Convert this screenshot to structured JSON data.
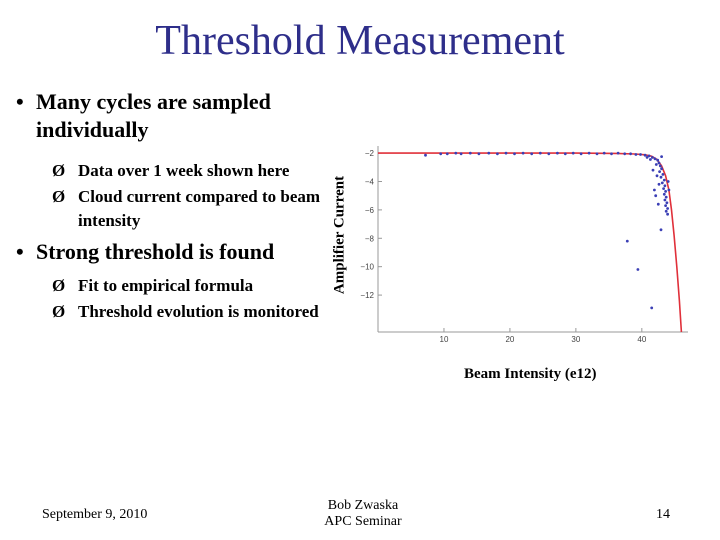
{
  "slide": {
    "title": "Threshold Measurement",
    "bullets": [
      {
        "text": "Many cycles are sampled individually",
        "subs": [
          "Data over 1 week shown here",
          "Cloud current compared to beam intensity"
        ]
      },
      {
        "text": "Strong threshold is found",
        "subs": [
          "Fit to empirical formula",
          "Threshold evolution is monitored"
        ]
      }
    ],
    "bullet_glyph": "•",
    "sub_glyph": "Ø"
  },
  "chart_data": {
    "type": "scatter",
    "xlabel": "Beam Intensity (e12)",
    "ylabel": "Amplifier Current",
    "xlim": [
      0,
      47
    ],
    "ylim": [
      -14.6,
      -1.5
    ],
    "xticks": [
      10,
      20,
      30,
      40
    ],
    "yticks": [
      -2,
      -4,
      -6,
      -8,
      -10,
      -12
    ],
    "grid": false,
    "series": [
      {
        "kind": "points",
        "color": "#3b3fb5",
        "points": [
          [
            9.5,
            -2.05
          ],
          [
            10.5,
            -2.05
          ],
          [
            11.8,
            -2.0
          ],
          [
            12.6,
            -2.05
          ],
          [
            14.0,
            -2.0
          ],
          [
            15.3,
            -2.05
          ],
          [
            16.8,
            -2.0
          ],
          [
            18.1,
            -2.05
          ],
          [
            19.4,
            -2.0
          ],
          [
            20.7,
            -2.05
          ],
          [
            22.0,
            -2.0
          ],
          [
            23.3,
            -2.05
          ],
          [
            24.6,
            -2.0
          ],
          [
            25.9,
            -2.05
          ],
          [
            27.2,
            -2.0
          ],
          [
            28.4,
            -2.05
          ],
          [
            29.6,
            -2.0
          ],
          [
            30.8,
            -2.05
          ],
          [
            32.0,
            -2.0
          ],
          [
            33.2,
            -2.05
          ],
          [
            34.3,
            -2.0
          ],
          [
            35.4,
            -2.05
          ],
          [
            36.4,
            -2.0
          ],
          [
            37.4,
            -2.05
          ],
          [
            38.3,
            -2.05
          ],
          [
            39.1,
            -2.1
          ],
          [
            39.8,
            -2.1
          ],
          [
            40.5,
            -2.15
          ],
          [
            41.1,
            -2.2
          ],
          [
            41.6,
            -2.3
          ],
          [
            42.0,
            -2.4
          ],
          [
            42.4,
            -2.5
          ],
          [
            42.6,
            -2.7
          ],
          [
            42.8,
            -2.9
          ],
          [
            43.0,
            -3.1
          ],
          [
            42.7,
            -3.3
          ],
          [
            43.2,
            -3.5
          ],
          [
            42.9,
            -3.7
          ],
          [
            43.4,
            -3.9
          ],
          [
            43.1,
            -4.1
          ],
          [
            43.5,
            -4.3
          ],
          [
            43.3,
            -4.5
          ],
          [
            43.6,
            -4.7
          ],
          [
            43.4,
            -4.9
          ],
          [
            43.7,
            -5.1
          ],
          [
            43.5,
            -5.3
          ],
          [
            43.8,
            -5.5
          ],
          [
            43.6,
            -5.7
          ],
          [
            43.9,
            -5.9
          ],
          [
            43.7,
            -6.1
          ],
          [
            43.9,
            -6.3
          ],
          [
            42.6,
            -4.2
          ],
          [
            42.3,
            -3.6
          ],
          [
            42.1,
            -5.0
          ],
          [
            42.5,
            -5.6
          ],
          [
            41.9,
            -4.6
          ],
          [
            42.2,
            -2.8
          ],
          [
            41.7,
            -3.2
          ],
          [
            44.0,
            -4.0
          ],
          [
            44.1,
            -4.6
          ],
          [
            43.0,
            -2.25
          ],
          [
            41.3,
            -2.45
          ],
          [
            40.8,
            -2.3
          ],
          [
            7.2,
            -2.15
          ],
          [
            37.8,
            -8.2
          ],
          [
            42.9,
            -7.4
          ],
          [
            39.4,
            -10.2
          ],
          [
            41.5,
            -12.9
          ]
        ]
      },
      {
        "kind": "line",
        "color": "#e0303a",
        "points": [
          [
            0,
            -2.0
          ],
          [
            10,
            -2.0
          ],
          [
            20,
            -2.0
          ],
          [
            30,
            -2.0
          ],
          [
            36,
            -2.02
          ],
          [
            39,
            -2.06
          ],
          [
            40.5,
            -2.12
          ],
          [
            41.5,
            -2.22
          ],
          [
            42.3,
            -2.45
          ],
          [
            43.0,
            -2.9
          ],
          [
            43.6,
            -3.6
          ],
          [
            44.1,
            -4.6
          ],
          [
            44.5,
            -6.0
          ],
          [
            44.9,
            -7.8
          ],
          [
            45.3,
            -10.0
          ],
          [
            45.7,
            -12.4
          ],
          [
            46.0,
            -14.6
          ]
        ]
      }
    ]
  },
  "footer": {
    "date": "September 9, 2010",
    "author": "Bob Zwaska",
    "venue": "APC Seminar",
    "page": "14"
  },
  "colors": {
    "title": "#2e2e8a",
    "points": "#3b3fb5",
    "fit_line": "#e0303a"
  }
}
